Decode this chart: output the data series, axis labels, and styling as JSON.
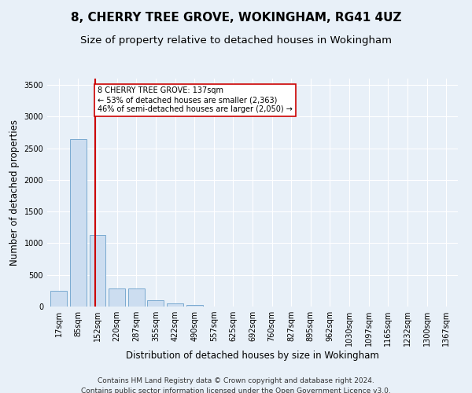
{
  "title": "8, CHERRY TREE GROVE, WOKINGHAM, RG41 4UZ",
  "subtitle": "Size of property relative to detached houses in Wokingham",
  "xlabel": "Distribution of detached houses by size in Wokingham",
  "ylabel": "Number of detached properties",
  "bar_labels": [
    "17sqm",
    "85sqm",
    "152sqm",
    "220sqm",
    "287sqm",
    "355sqm",
    "422sqm",
    "490sqm",
    "557sqm",
    "625sqm",
    "692sqm",
    "760sqm",
    "827sqm",
    "895sqm",
    "962sqm",
    "1030sqm",
    "1097sqm",
    "1165sqm",
    "1232sqm",
    "1300sqm",
    "1367sqm"
  ],
  "bar_values": [
    250,
    2650,
    1130,
    280,
    280,
    95,
    55,
    30,
    0,
    0,
    0,
    0,
    0,
    0,
    0,
    0,
    0,
    0,
    0,
    0,
    0
  ],
  "bar_color": "#ccddf0",
  "bar_edge_color": "#7aaad0",
  "property_line_x": 1.87,
  "property_line_color": "#cc0000",
  "annotation_text": "8 CHERRY TREE GROVE: 137sqm\n← 53% of detached houses are smaller (2,363)\n46% of semi-detached houses are larger (2,050) →",
  "annotation_box_color": "#ffffff",
  "annotation_box_edge": "#cc0000",
  "ylim": [
    0,
    3600
  ],
  "yticks": [
    0,
    500,
    1000,
    1500,
    2000,
    2500,
    3000,
    3500
  ],
  "footnote1": "Contains HM Land Registry data © Crown copyright and database right 2024.",
  "footnote2": "Contains public sector information licensed under the Open Government Licence v3.0.",
  "background_color": "#e8f0f8",
  "plot_bg_color": "#e8f0f8",
  "grid_color": "#ffffff",
  "title_fontsize": 11,
  "subtitle_fontsize": 9.5,
  "axis_label_fontsize": 8.5,
  "tick_fontsize": 7,
  "footnote_fontsize": 6.5
}
